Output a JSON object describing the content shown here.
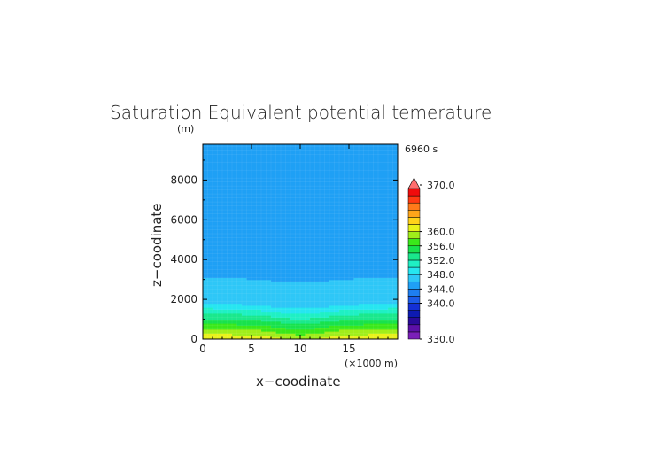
{
  "chart_data": {
    "type": "heatmap",
    "title": "Saturation Equivalent potential temerature",
    "xlabel": "x−coodinate",
    "ylabel": "z−coodinate",
    "x_unit": "(×1000 m)",
    "y_unit": "(m)",
    "time_label": "6960 s",
    "xlim": [
      0,
      20
    ],
    "ylim": [
      0,
      9800
    ],
    "x_ticks": [
      0,
      5,
      10,
      15
    ],
    "y_ticks": [
      0,
      2000,
      4000,
      6000,
      8000
    ],
    "grid": false,
    "legend_position": "right",
    "colorbar": {
      "min": 330,
      "max": 370,
      "step": 2,
      "tick_values": [
        330.0,
        340.0,
        344.0,
        348.0,
        352.0,
        356.0,
        360.0,
        370.0
      ],
      "tick_labels": [
        "330.0",
        "340.0",
        "344.0",
        "348.0",
        "352.0",
        "356.0",
        "360.0",
        "370.0"
      ],
      "extend": "max",
      "colors": [
        "#7a1fb8",
        "#5c10a8",
        "#2a0a99",
        "#0d1ab2",
        "#1430d6",
        "#1c5be8",
        "#1e7ef0",
        "#1fa0f5",
        "#2ec7f7",
        "#26e6f0",
        "#1ff0c4",
        "#1ae88c",
        "#18e24d",
        "#3ae81a",
        "#a0ee1a",
        "#e9f21a",
        "#ffd21a",
        "#ffa51a",
        "#ff7a1a",
        "#ff3a12",
        "#f00c0c"
      ],
      "extend_color": "#ff6e6e"
    },
    "x": [
      0,
      1,
      2,
      3,
      4,
      5,
      6,
      7,
      8,
      9,
      10,
      11,
      12,
      13,
      14,
      15,
      16,
      17,
      18,
      19,
      20
    ],
    "isolines": [
      {
        "value": 348,
        "z": [
          1820,
          1810,
          1790,
          1770,
          1750,
          1730,
          1690,
          1650,
          1610,
          1580,
          1570,
          1580,
          1610,
          1650,
          1690,
          1730,
          1750,
          1770,
          1790,
          1810,
          1820
        ]
      },
      {
        "value": 346,
        "z": [
          3150,
          3140,
          3120,
          3090,
          3070,
          3040,
          3000,
          2960,
          2920,
          2890,
          2880,
          2890,
          2920,
          2960,
          3000,
          3040,
          3070,
          3090,
          3120,
          3140,
          3150
        ]
      },
      {
        "value": 344,
        "z": [
          7050,
          7020,
          6990,
          6950,
          6900,
          6840,
          6760,
          6740,
          6750,
          6780,
          6800,
          6780,
          6750,
          6740,
          6760,
          6840,
          6900,
          6950,
          6990,
          7020,
          7050
        ]
      }
    ],
    "surface_profile": {
      "surface_value": 362,
      "lapse_per_m": 0.0135,
      "center_cool_amplitude": 2.2,
      "center_x": 10,
      "center_halfwidth": 3.2
    }
  }
}
